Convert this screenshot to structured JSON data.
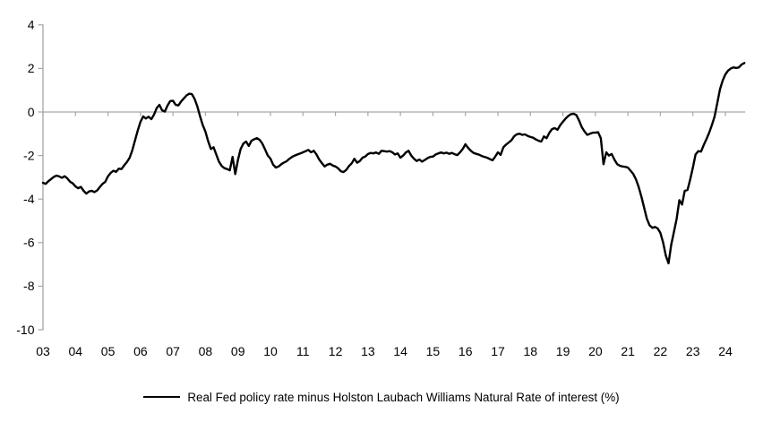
{
  "chart": {
    "legend_label": "Real Fed policy rate minus Holston Laubach Williams Natural Rate of interest (%)",
    "colors": {
      "axis": "#a6a6a6",
      "line": "#000000",
      "text": "#000000",
      "background": "#ffffff"
    }
  },
  "chart_data": {
    "type": "line",
    "title": "",
    "legend_entries": [
      "Real Fed policy rate minus Holston Laubach Williams Natural Rate of interest (%)"
    ],
    "legend_position": "bottom-center",
    "grid": "zero-line-only",
    "ylim": [
      -10,
      4
    ],
    "y_ticks": [
      4,
      2,
      0,
      -2,
      -4,
      -6,
      -8,
      -10
    ],
    "y_tick_labels": [
      "4",
      "2",
      "0",
      "-2",
      "-4",
      "-6",
      "-8",
      "-10"
    ],
    "xlim_years": [
      2003.0,
      2024.75
    ],
    "x_tick_years": [
      2003,
      2004,
      2005,
      2006,
      2007,
      2008,
      2009,
      2010,
      2011,
      2012,
      2013,
      2014,
      2015,
      2016,
      2017,
      2018,
      2019,
      2020,
      2021,
      2022,
      2023,
      2024
    ],
    "x_tick_labels": [
      "03",
      "04",
      "05",
      "06",
      "07",
      "08",
      "09",
      "10",
      "11",
      "12",
      "13",
      "14",
      "15",
      "16",
      "17",
      "18",
      "19",
      "20",
      "21",
      "22",
      "23",
      "24"
    ],
    "frequency": "monthly",
    "x_first": "2003-01",
    "x_last": "2024-08",
    "x_note": "x values are monthly decimal years: 2003 + i/12 for i = 0..259",
    "values": [
      -3.25,
      -3.3,
      -3.18,
      -3.08,
      -2.98,
      -2.92,
      -2.96,
      -3.02,
      -2.95,
      -3.05,
      -3.2,
      -3.28,
      -3.42,
      -3.5,
      -3.44,
      -3.62,
      -3.75,
      -3.65,
      -3.62,
      -3.68,
      -3.6,
      -3.45,
      -3.3,
      -3.21,
      -2.95,
      -2.8,
      -2.7,
      -2.75,
      -2.6,
      -2.62,
      -2.45,
      -2.3,
      -2.1,
      -1.75,
      -1.3,
      -0.85,
      -0.45,
      -0.2,
      -0.3,
      -0.22,
      -0.33,
      -0.12,
      0.18,
      0.33,
      0.08,
      0.02,
      0.3,
      0.5,
      0.52,
      0.33,
      0.3,
      0.48,
      0.62,
      0.76,
      0.84,
      0.82,
      0.6,
      0.25,
      -0.2,
      -0.6,
      -0.9,
      -1.35,
      -1.7,
      -1.62,
      -1.95,
      -2.28,
      -2.48,
      -2.58,
      -2.62,
      -2.68,
      -2.06,
      -2.85,
      -2.2,
      -1.7,
      -1.45,
      -1.36,
      -1.56,
      -1.32,
      -1.25,
      -1.2,
      -1.28,
      -1.45,
      -1.72,
      -2.0,
      -2.14,
      -2.42,
      -2.55,
      -2.5,
      -2.4,
      -2.32,
      -2.26,
      -2.15,
      -2.06,
      -2.0,
      -1.95,
      -1.9,
      -1.85,
      -1.8,
      -1.74,
      -1.85,
      -1.78,
      -1.95,
      -2.18,
      -2.35,
      -2.5,
      -2.42,
      -2.38,
      -2.46,
      -2.5,
      -2.59,
      -2.72,
      -2.76,
      -2.66,
      -2.48,
      -2.36,
      -2.15,
      -2.33,
      -2.25,
      -2.1,
      -2.05,
      -1.93,
      -1.88,
      -1.9,
      -1.86,
      -1.92,
      -1.78,
      -1.8,
      -1.82,
      -1.8,
      -1.85,
      -1.95,
      -1.9,
      -2.1,
      -2.0,
      -1.86,
      -1.78,
      -2.0,
      -2.15,
      -2.25,
      -2.18,
      -2.28,
      -2.2,
      -2.12,
      -2.06,
      -2.05,
      -1.95,
      -1.9,
      -1.86,
      -1.9,
      -1.87,
      -1.92,
      -1.88,
      -1.94,
      -1.98,
      -1.85,
      -1.7,
      -1.48,
      -1.65,
      -1.78,
      -1.88,
      -1.92,
      -1.96,
      -2.02,
      -2.06,
      -2.1,
      -2.16,
      -2.22,
      -2.05,
      -1.85,
      -1.97,
      -1.62,
      -1.5,
      -1.4,
      -1.3,
      -1.12,
      -1.02,
      -1.0,
      -1.05,
      -1.03,
      -1.1,
      -1.15,
      -1.18,
      -1.26,
      -1.32,
      -1.36,
      -1.12,
      -1.2,
      -0.95,
      -0.78,
      -0.74,
      -0.82,
      -0.6,
      -0.45,
      -0.3,
      -0.18,
      -0.1,
      -0.08,
      -0.15,
      -0.4,
      -0.7,
      -0.9,
      -1.05,
      -1.0,
      -0.95,
      -0.95,
      -0.93,
      -1.2,
      -2.4,
      -1.85,
      -2.0,
      -1.93,
      -2.18,
      -2.39,
      -2.47,
      -2.5,
      -2.52,
      -2.55,
      -2.7,
      -2.85,
      -3.1,
      -3.45,
      -3.9,
      -4.4,
      -4.9,
      -5.2,
      -5.32,
      -5.28,
      -5.35,
      -5.55,
      -6.0,
      -6.6,
      -6.95,
      -6.1,
      -5.5,
      -4.9,
      -4.05,
      -4.25,
      -3.62,
      -3.58,
      -3.1,
      -2.55,
      -1.95,
      -1.8,
      -1.82,
      -1.52,
      -1.25,
      -0.95,
      -0.6,
      -0.22,
      0.4,
      1.05,
      1.45,
      1.73,
      1.9,
      2.0,
      2.05,
      2.02,
      2.05,
      2.18,
      2.25
    ]
  }
}
